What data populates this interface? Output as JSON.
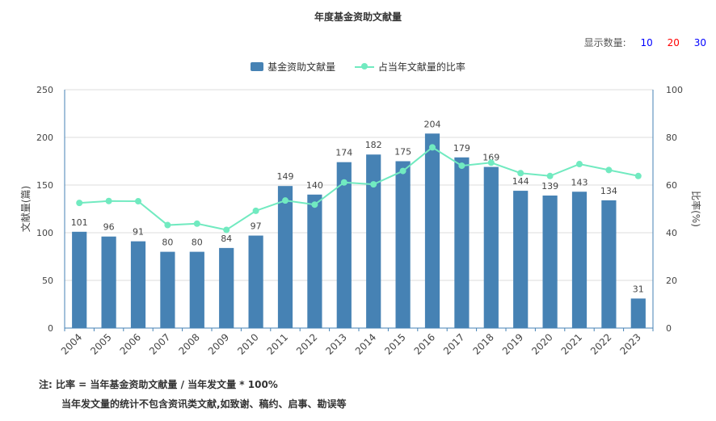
{
  "title": "年度基金资助文献量",
  "count_selector": {
    "label": "显示数量:",
    "options": [
      {
        "label": "10",
        "color": "#0000ff"
      },
      {
        "label": "20",
        "color": "#ff0000"
      },
      {
        "label": "30",
        "color": "#0000ff"
      }
    ]
  },
  "notes": {
    "line1": "注:  比率 = 当年基金资助文献量 / 当年发文量 * 100%",
    "line2": "当年发文量的统计不包含资讯类文献,如致谢、稿约、启事、勘误等"
  },
  "colors": {
    "bar": "#4682b4",
    "line": "#71eac0",
    "axis": "#4682b4"
  },
  "chart_data": {
    "type": "bar",
    "categories": [
      "2004",
      "2005",
      "2006",
      "2007",
      "2008",
      "2009",
      "2010",
      "2011",
      "2012",
      "2013",
      "2014",
      "2015",
      "2016",
      "2017",
      "2018",
      "2019",
      "2020",
      "2021",
      "2022",
      "2023"
    ],
    "series": [
      {
        "name": "基金资助文献量",
        "type": "bar",
        "axis": "left",
        "values": [
          101,
          96,
          91,
          80,
          80,
          84,
          97,
          149,
          140,
          174,
          182,
          175,
          204,
          179,
          169,
          144,
          139,
          143,
          134,
          31
        ]
      },
      {
        "name": "占当年文献量的比率",
        "type": "line",
        "axis": "right",
        "values": [
          52.5,
          53.3,
          53.2,
          43.2,
          43.8,
          41.2,
          49.2,
          53.5,
          51.8,
          61.1,
          60.3,
          65.9,
          75.8,
          68.1,
          69.4,
          65.0,
          63.8,
          68.8,
          66.3,
          63.8
        ]
      }
    ],
    "ylabel": "文献量(篇)",
    "y2label": "比率(%)",
    "ylim": [
      0,
      250
    ],
    "y2lim": [
      0,
      100
    ],
    "yticks": [
      0,
      50,
      100,
      150,
      200,
      250
    ],
    "y2ticks": [
      0,
      20,
      40,
      60,
      80,
      100
    ],
    "grid": true,
    "legend_position": "top-center"
  }
}
